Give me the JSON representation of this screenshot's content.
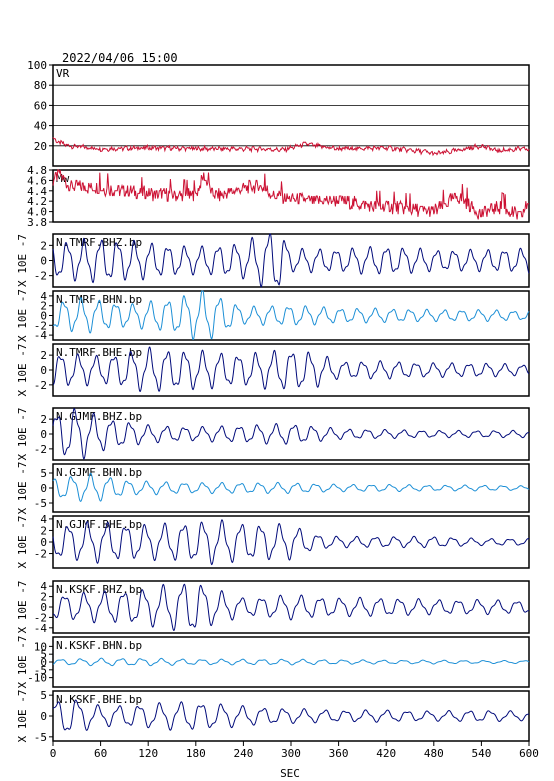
{
  "header": {
    "datetime": "2022/04/06  15:00"
  },
  "colors": {
    "frame": "#000000",
    "vr_mw": "#cc1133",
    "dark": "#000a7a",
    "light": "#1c8fd6"
  },
  "x_axis": {
    "label": "SEC",
    "range": [
      0,
      600
    ],
    "ticks": [
      "0",
      "60",
      "120",
      "180",
      "240",
      "300",
      "360",
      "420",
      "480",
      "540",
      "600"
    ]
  },
  "chart_data": [
    {
      "type": "line",
      "label": "VR",
      "ylim": [
        0,
        100
      ],
      "ytick_labels": [
        "20",
        "40",
        "60",
        "80",
        "100"
      ],
      "grid": true,
      "x": [
        0,
        5,
        20,
        60,
        120,
        200,
        260,
        290,
        300,
        320,
        330,
        360,
        420,
        470,
        480,
        500,
        520,
        540,
        560,
        590,
        600
      ],
      "values": [
        28,
        24,
        20,
        17,
        18,
        17,
        17,
        16,
        18,
        22,
        20,
        17,
        18,
        14,
        12,
        14,
        17,
        20,
        15,
        17,
        16
      ]
    },
    {
      "type": "line",
      "label": "Mw",
      "ylim": [
        3.8,
        4.8
      ],
      "ytick_labels": [
        "3.8",
        "4.0",
        "4.2",
        "4.4",
        "4.6",
        "4.8"
      ],
      "grid": false,
      "x": [
        0,
        8,
        20,
        60,
        120,
        180,
        190,
        200,
        210,
        240,
        260,
        280,
        300,
        330,
        360,
        400,
        420,
        450,
        480,
        510,
        540,
        560,
        590,
        600
      ],
      "values": [
        4.6,
        4.75,
        4.5,
        4.45,
        4.35,
        4.3,
        4.7,
        4.35,
        4.3,
        4.45,
        4.5,
        4.3,
        4.25,
        4.2,
        4.22,
        4.1,
        4.1,
        4.05,
        4.0,
        4.3,
        3.95,
        4.1,
        3.9,
        4.2
      ]
    },
    {
      "type": "line",
      "label": "N.TMRF.BHZ.bp",
      "ylabel": "X 10E -7",
      "ylim": [
        -3.5,
        3.5
      ],
      "ytick_labels": [
        "2",
        "0",
        "-2"
      ],
      "color_key": "dark",
      "amplitude_envelope": [
        [
          0,
          2
        ],
        [
          60,
          2.5
        ],
        [
          120,
          2
        ],
        [
          180,
          1.5
        ],
        [
          240,
          2
        ],
        [
          270,
          3.2
        ],
        [
          285,
          3.6
        ],
        [
          300,
          1.3
        ],
        [
          360,
          1.3
        ],
        [
          420,
          1.6
        ],
        [
          480,
          1.2
        ],
        [
          540,
          1.2
        ],
        [
          600,
          1.4
        ]
      ]
    },
    {
      "type": "line",
      "label": "N.TMRF.BHN.bp",
      "ylabel": "X 10E -7",
      "ylim": [
        -5,
        5
      ],
      "ytick_labels": [
        "4",
        "2",
        "0",
        "-2",
        "-4"
      ],
      "color_key": "light",
      "amplitude_envelope": [
        [
          0,
          2.5
        ],
        [
          40,
          3
        ],
        [
          100,
          2
        ],
        [
          150,
          3
        ],
        [
          190,
          4.5
        ],
        [
          200,
          4
        ],
        [
          240,
          1.5
        ],
        [
          300,
          1.8
        ],
        [
          360,
          1.3
        ],
        [
          420,
          1.2
        ],
        [
          480,
          1
        ],
        [
          540,
          1
        ],
        [
          600,
          0.8
        ]
      ]
    },
    {
      "type": "line",
      "label": "N.TMRF.BHE.bp",
      "ylabel": "X 10E -7",
      "ylim": [
        -3.5,
        3.5
      ],
      "ytick_labels": [
        "2",
        "0",
        "-2"
      ],
      "color_key": "dark",
      "amplitude_envelope": [
        [
          0,
          2
        ],
        [
          60,
          1.6
        ],
        [
          120,
          2.5
        ],
        [
          180,
          2.2
        ],
        [
          240,
          1.8
        ],
        [
          300,
          2.4
        ],
        [
          330,
          2
        ],
        [
          360,
          1
        ],
        [
          420,
          1
        ],
        [
          480,
          0.8
        ],
        [
          540,
          0.8
        ],
        [
          600,
          0.6
        ]
      ]
    },
    {
      "type": "line",
      "label": "N.GJMF.BHZ.bp",
      "ylabel": "X 10E -7",
      "ylim": [
        -3.5,
        3.5
      ],
      "ytick_labels": [
        "2",
        "0",
        "-2"
      ],
      "color_key": "dark",
      "amplitude_envelope": [
        [
          0,
          2.5
        ],
        [
          30,
          3
        ],
        [
          60,
          2
        ],
        [
          120,
          1
        ],
        [
          180,
          0.8
        ],
        [
          240,
          1
        ],
        [
          300,
          1.2
        ],
        [
          360,
          0.6
        ],
        [
          420,
          0.5
        ],
        [
          480,
          0.4
        ],
        [
          540,
          0.4
        ],
        [
          600,
          0.4
        ]
      ]
    },
    {
      "type": "line",
      "label": "N.GJMF.BHN.bp",
      "ylabel": "X 10E -7",
      "ylim": [
        -8,
        8
      ],
      "ytick_labels": [
        "5",
        "0",
        "-5"
      ],
      "color_key": "light",
      "amplitude_envelope": [
        [
          0,
          3
        ],
        [
          50,
          4
        ],
        [
          100,
          2
        ],
        [
          180,
          1.5
        ],
        [
          240,
          1.5
        ],
        [
          300,
          1.5
        ],
        [
          360,
          1
        ],
        [
          420,
          1
        ],
        [
          480,
          0.8
        ],
        [
          540,
          0.8
        ],
        [
          600,
          0.6
        ]
      ]
    },
    {
      "type": "line",
      "label": "N.GJMF.BHE.bp",
      "ylabel": "X 10E -7",
      "ylim": [
        -4.5,
        4.5
      ],
      "ytick_labels": [
        "4",
        "2",
        "0",
        "-2"
      ],
      "color_key": "dark",
      "amplitude_envelope": [
        [
          0,
          2.5
        ],
        [
          60,
          3
        ],
        [
          120,
          2.5
        ],
        [
          200,
          3.2
        ],
        [
          240,
          2.8
        ],
        [
          300,
          2.5
        ],
        [
          330,
          1.2
        ],
        [
          360,
          0.8
        ],
        [
          420,
          0.8
        ],
        [
          480,
          0.8
        ],
        [
          540,
          0.5
        ],
        [
          600,
          0.5
        ]
      ]
    },
    {
      "type": "line",
      "label": "N.KSKF.BHZ.bp",
      "ylabel": "X 10E -7",
      "ylim": [
        -5,
        5
      ],
      "ytick_labels": [
        "4",
        "2",
        "0",
        "-2",
        "-4"
      ],
      "color_key": "dark",
      "amplitude_envelope": [
        [
          0,
          2
        ],
        [
          60,
          2.5
        ],
        [
          120,
          3
        ],
        [
          180,
          4.5
        ],
        [
          200,
          3
        ],
        [
          240,
          1.5
        ],
        [
          300,
          2
        ],
        [
          360,
          1.5
        ],
        [
          420,
          1.5
        ],
        [
          480,
          1.2
        ],
        [
          540,
          1.2
        ],
        [
          600,
          1
        ]
      ]
    },
    {
      "type": "line",
      "label": "N.KSKF.BHN.bp",
      "ylabel": "X 10E -7",
      "ylim": [
        -16,
        16
      ],
      "ytick_labels": [
        "10",
        "5",
        "0",
        "-5",
        "-10"
      ],
      "color_key": "light",
      "amplitude_envelope": [
        [
          0,
          1.5
        ],
        [
          60,
          2
        ],
        [
          120,
          2
        ],
        [
          180,
          1.5
        ],
        [
          240,
          1.5
        ],
        [
          300,
          1.5
        ],
        [
          360,
          1.2
        ],
        [
          420,
          1
        ],
        [
          480,
          1
        ],
        [
          540,
          0.8
        ],
        [
          600,
          0.8
        ]
      ]
    },
    {
      "type": "line",
      "label": "N.KSKF.BHE.bp",
      "ylabel": "X 10E -7",
      "ylim": [
        -6,
        6
      ],
      "ytick_labels": [
        "5",
        "0",
        "-5"
      ],
      "color_key": "dark",
      "amplitude_envelope": [
        [
          0,
          3
        ],
        [
          20,
          4
        ],
        [
          60,
          2
        ],
        [
          120,
          2.5
        ],
        [
          180,
          3
        ],
        [
          240,
          2
        ],
        [
          300,
          1.5
        ],
        [
          360,
          1.2
        ],
        [
          420,
          1.2
        ],
        [
          480,
          1
        ],
        [
          540,
          1.2
        ],
        [
          600,
          0.9
        ]
      ]
    }
  ]
}
